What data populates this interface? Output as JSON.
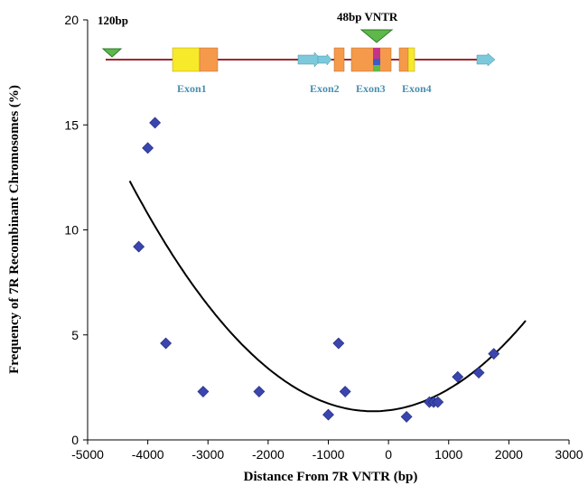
{
  "chart_data": {
    "type": "scatter",
    "xlabel": "Distance From 7R VNTR (bp)",
    "ylabel": "Frequency of 7R Recombinant Chromosomes (%)",
    "xlim": [
      -5000,
      3000
    ],
    "ylim": [
      0,
      20
    ],
    "x_ticks": [
      -5000,
      -4000,
      -3000,
      -2000,
      -1000,
      0,
      1000,
      2000,
      3000
    ],
    "y_ticks": [
      0,
      5,
      10,
      15,
      20
    ],
    "grid": false,
    "marker_color": "#3a45b0",
    "curve_color": "#000000",
    "points": [
      {
        "x": -4150,
        "y": 9.2
      },
      {
        "x": -4000,
        "y": 13.9
      },
      {
        "x": -3880,
        "y": 15.1
      },
      {
        "x": -3700,
        "y": 4.6
      },
      {
        "x": -3080,
        "y": 2.3
      },
      {
        "x": -2150,
        "y": 2.3
      },
      {
        "x": -1000,
        "y": 1.2
      },
      {
        "x": -830,
        "y": 4.6
      },
      {
        "x": -720,
        "y": 2.3
      },
      {
        "x": 300,
        "y": 1.1
      },
      {
        "x": 680,
        "y": 1.8
      },
      {
        "x": 750,
        "y": 1.8
      },
      {
        "x": 820,
        "y": 1.8
      },
      {
        "x": 1150,
        "y": 3.0
      },
      {
        "x": 1500,
        "y": 3.2
      },
      {
        "x": 1750,
        "y": 4.1
      }
    ],
    "trendline": {
      "type": "polynomial-2",
      "x_range": [
        -4300,
        2280
      ],
      "points": [
        {
          "x": -4300,
          "y": 12.1
        },
        {
          "x": -3500,
          "y": 8.5
        },
        {
          "x": -2500,
          "y": 5.0
        },
        {
          "x": -1500,
          "y": 2.6
        },
        {
          "x": -500,
          "y": 1.4
        },
        {
          "x": 0,
          "y": 1.25
        },
        {
          "x": 500,
          "y": 1.5
        },
        {
          "x": 1500,
          "y": 3.2
        },
        {
          "x": 2280,
          "y": 6.0
        }
      ]
    }
  },
  "gene_diagram": {
    "label_120bp": "120bp",
    "label_vntr": "48bp VNTR",
    "exon_labels": [
      "Exon1",
      "Exon2",
      "Exon3",
      "Exon4"
    ],
    "colors": {
      "line": "#a0282d",
      "exon_yellow": "#f7ea2a",
      "exon_orange": "#f59a4a",
      "triangle_green": "#5eb84a",
      "arrow_cyan": "#7cc9dc",
      "exon_label": "#4a8fb0",
      "vntr_magenta": "#c4338a",
      "vntr_blue": "#3a5bc4"
    }
  }
}
